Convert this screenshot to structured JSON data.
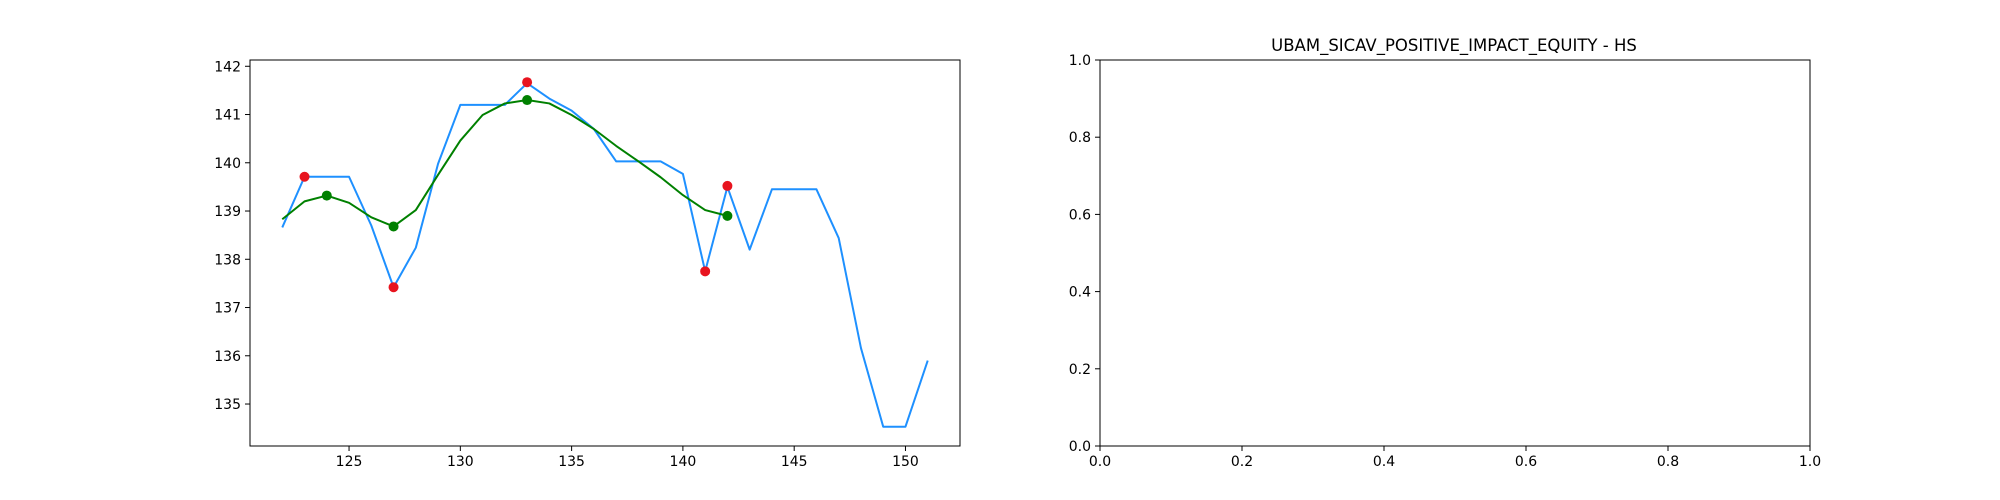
{
  "chart_data": [
    {
      "type": "line",
      "title": "",
      "xlabel": "",
      "ylabel": "",
      "xlim": [
        120.55,
        152.45
      ],
      "ylim": [
        134.13,
        142.13
      ],
      "x_ticks": [
        125,
        130,
        135,
        140,
        145,
        150
      ],
      "y_ticks": [
        135,
        136,
        137,
        138,
        139,
        140,
        141,
        142
      ],
      "grid": false,
      "series": [
        {
          "color": "#1e90ff",
          "x": [
            122,
            123,
            124,
            125,
            126,
            127,
            128,
            129,
            130,
            131,
            132,
            133,
            134,
            135,
            136,
            137,
            138,
            139,
            140,
            141,
            142,
            143,
            144,
            145,
            146,
            147,
            148,
            149,
            150,
            151
          ],
          "y": [
            138.66,
            139.71,
            139.71,
            139.71,
            138.7,
            137.42,
            138.24,
            139.98,
            141.2,
            141.2,
            141.2,
            141.65,
            141.33,
            141.08,
            140.7,
            140.03,
            140.03,
            140.03,
            139.77,
            137.75,
            139.5,
            138.2,
            139.45,
            139.45,
            139.45,
            138.44,
            136.16,
            134.53,
            134.53,
            135.9
          ]
        },
        {
          "color": "#008000",
          "x": [
            122,
            123,
            124,
            125,
            126,
            127,
            128,
            129,
            130,
            131,
            132,
            133,
            134,
            135,
            136,
            137,
            138,
            139,
            140,
            141,
            142
          ],
          "y": [
            138.83,
            139.2,
            139.32,
            139.17,
            138.87,
            138.68,
            139.02,
            139.75,
            140.46,
            140.99,
            141.23,
            141.3,
            141.23,
            140.99,
            140.7,
            140.35,
            140.03,
            139.7,
            139.33,
            139.02,
            138.9
          ]
        }
      ],
      "markers": [
        {
          "color": "#e8141f",
          "points": [
            [
              123,
              139.71
            ],
            [
              127,
              137.42
            ],
            [
              133,
              141.67
            ],
            [
              141,
              137.75
            ],
            [
              142,
              139.52
            ]
          ]
        },
        {
          "color": "#008000",
          "points": [
            [
              124,
              139.32
            ],
            [
              127,
              138.68
            ],
            [
              133,
              141.3
            ],
            [
              142,
              138.9
            ]
          ]
        }
      ]
    },
    {
      "type": "line",
      "title": "UBAM_SICAV_POSITIVE_IMPACT_EQUITY - HS",
      "xlabel": "",
      "ylabel": "",
      "xlim": [
        0,
        1
      ],
      "ylim": [
        0,
        1
      ],
      "x_ticks": [
        "0.0",
        "0.2",
        "0.4",
        "0.6",
        "0.8",
        "1.0"
      ],
      "y_ticks": [
        "0.0",
        "0.2",
        "0.4",
        "0.6",
        "0.8",
        "1.0"
      ],
      "grid": false,
      "series": []
    }
  ]
}
